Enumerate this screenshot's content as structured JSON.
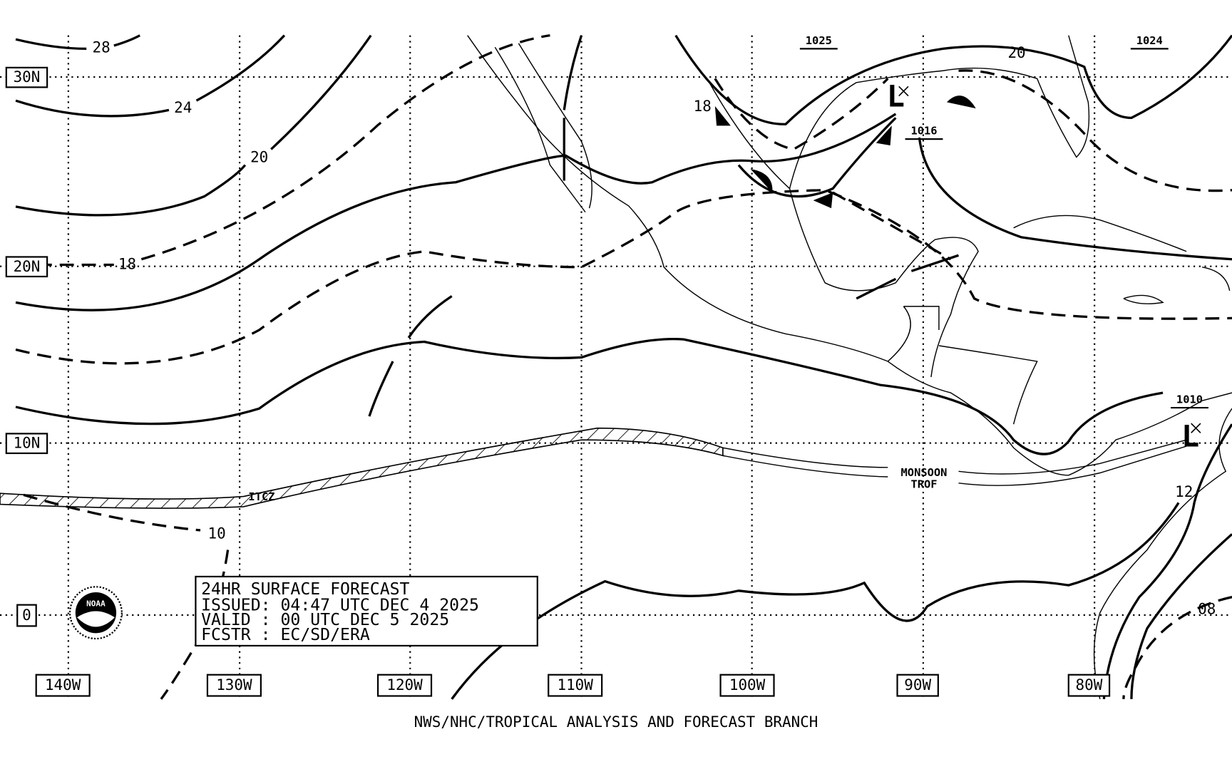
{
  "latitude_labels": [
    "30N",
    "20N",
    "10N",
    "0"
  ],
  "longitude_labels": [
    "140W",
    "130W",
    "120W",
    "110W",
    "100W",
    "90W",
    "80W"
  ],
  "isobar_labels": [
    "28",
    "24",
    "20",
    "18",
    "10",
    "18",
    "20",
    "12",
    "08"
  ],
  "pressure_labels": [
    "1025",
    "1024",
    "1016",
    "1010"
  ],
  "low_centers": [
    "L",
    "L"
  ],
  "features": {
    "itcz": "ITCZ",
    "monsoon": "MONSOON",
    "trof": "TROF"
  },
  "info_box": [
    "24HR SURFACE FORECAST",
    "ISSUED: 04:47 UTC DEC 4 2025",
    "VALID : 00 UTC DEC 5 2025",
    "FCSTR : EC/SD/ERA"
  ],
  "logo": "NOAA",
  "footer": "NWS/NHC/TROPICAL ANALYSIS AND FORECAST BRANCH"
}
